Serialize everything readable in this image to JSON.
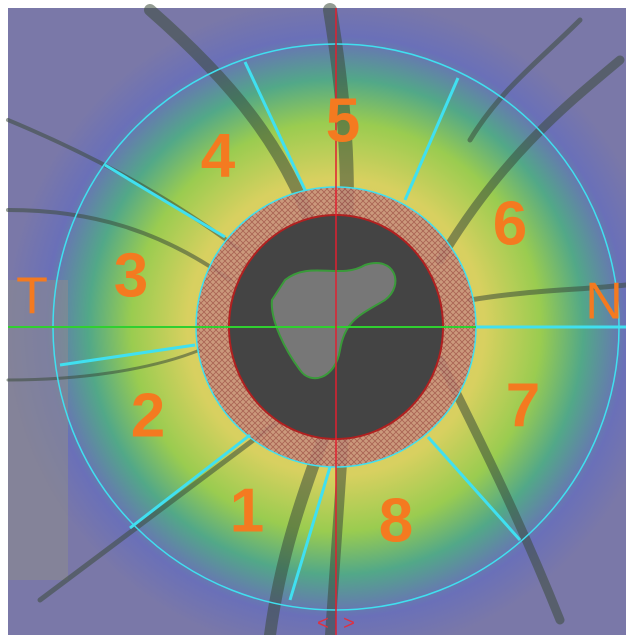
{
  "sectors": [
    "1",
    "2",
    "3",
    "4",
    "5",
    "6",
    "7",
    "8"
  ],
  "temporal": "T",
  "nasal": "N",
  "arrows": [
    "<",
    ">"
  ]
}
